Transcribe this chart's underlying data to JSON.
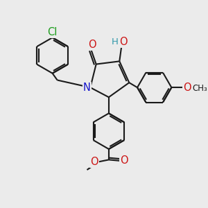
{
  "bg_color": "#ebebeb",
  "bond_color": "#1a1a1a",
  "bond_width": 1.5,
  "atom_colors": {
    "N": "#1414cc",
    "O": "#cc1414",
    "Cl": "#1a9c1a",
    "H": "#3399aa",
    "C": "#1a1a1a"
  },
  "font_size_atom": 10.5,
  "font_size_methyl": 8.5
}
